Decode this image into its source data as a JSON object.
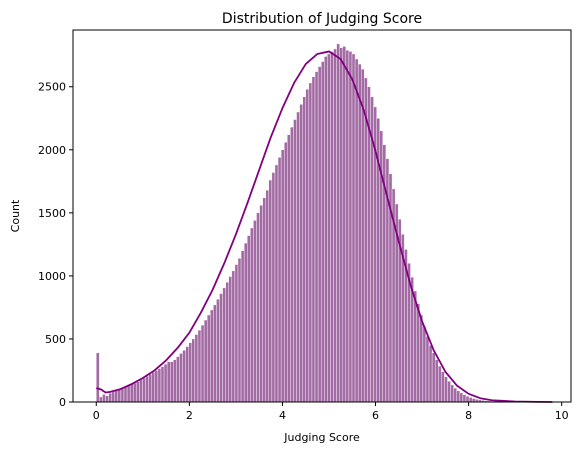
{
  "chart_data": {
    "type": "bar",
    "subtype": "histogram-with-kde",
    "title": "Distribution of Judging Score",
    "xlabel": "Judging Score",
    "ylabel": "Count",
    "xlim": [
      -0.5,
      10.2
    ],
    "ylim": [
      0,
      2950
    ],
    "xticks": [
      0,
      2,
      4,
      6,
      8,
      10
    ],
    "yticks": [
      0,
      500,
      1000,
      1500,
      2000,
      2500
    ],
    "bin_width": 0.0662,
    "bin_start": 0,
    "grid": false,
    "bar_color": "#8f4a8f",
    "bar_edge_color": "#ffffff",
    "kde_color": "#800080",
    "bin_counts": [
      390,
      40,
      60,
      50,
      70,
      80,
      90,
      100,
      110,
      120,
      130,
      140,
      150,
      160,
      175,
      190,
      205,
      220,
      235,
      250,
      265,
      280,
      300,
      320,
      320,
      335,
      360,
      385,
      410,
      440,
      470,
      500,
      535,
      570,
      610,
      650,
      690,
      730,
      770,
      815,
      860,
      905,
      950,
      995,
      1040,
      1090,
      1140,
      1200,
      1260,
      1320,
      1380,
      1440,
      1500,
      1560,
      1620,
      1680,
      1760,
      1820,
      1880,
      1940,
      2000,
      2060,
      2120,
      2180,
      2240,
      2300,
      2360,
      2420,
      2480,
      2530,
      2580,
      2620,
      2660,
      2700,
      2740,
      2760,
      2780,
      2800,
      2840,
      2810,
      2820,
      2790,
      2780,
      2760,
      2720,
      2680,
      2640,
      2570,
      2500,
      2420,
      2340,
      2250,
      2150,
      2040,
      1930,
      1810,
      1690,
      1570,
      1450,
      1330,
      1210,
      1100,
      990,
      880,
      780,
      690,
      600,
      520,
      450,
      390,
      335,
      285,
      240,
      200,
      165,
      135,
      110,
      90,
      72,
      58,
      46,
      36,
      28,
      22,
      17,
      13,
      10,
      8,
      6,
      5,
      4,
      3,
      3,
      2,
      2,
      2,
      1,
      1,
      1,
      1,
      1,
      1,
      1,
      1,
      1,
      1
    ],
    "kde_x": [
      0,
      0.1,
      0.2,
      0.3,
      0.5,
      0.75,
      1.0,
      1.25,
      1.5,
      1.75,
      2.0,
      2.25,
      2.5,
      2.75,
      3.0,
      3.25,
      3.5,
      3.75,
      4.0,
      4.25,
      4.5,
      4.75,
      5.0,
      5.25,
      5.5,
      5.75,
      6.0,
      6.25,
      6.5,
      6.75,
      7.0,
      7.25,
      7.5,
      7.75,
      8.0,
      8.25,
      8.5,
      9.0,
      9.5,
      9.8
    ],
    "kde_y": [
      110,
      100,
      75,
      80,
      100,
      140,
      190,
      250,
      330,
      430,
      550,
      710,
      890,
      1100,
      1330,
      1580,
      1840,
      2100,
      2330,
      2530,
      2680,
      2760,
      2780,
      2720,
      2560,
      2310,
      1990,
      1630,
      1270,
      930,
      640,
      410,
      240,
      130,
      65,
      30,
      14,
      4,
      1,
      0
    ]
  }
}
